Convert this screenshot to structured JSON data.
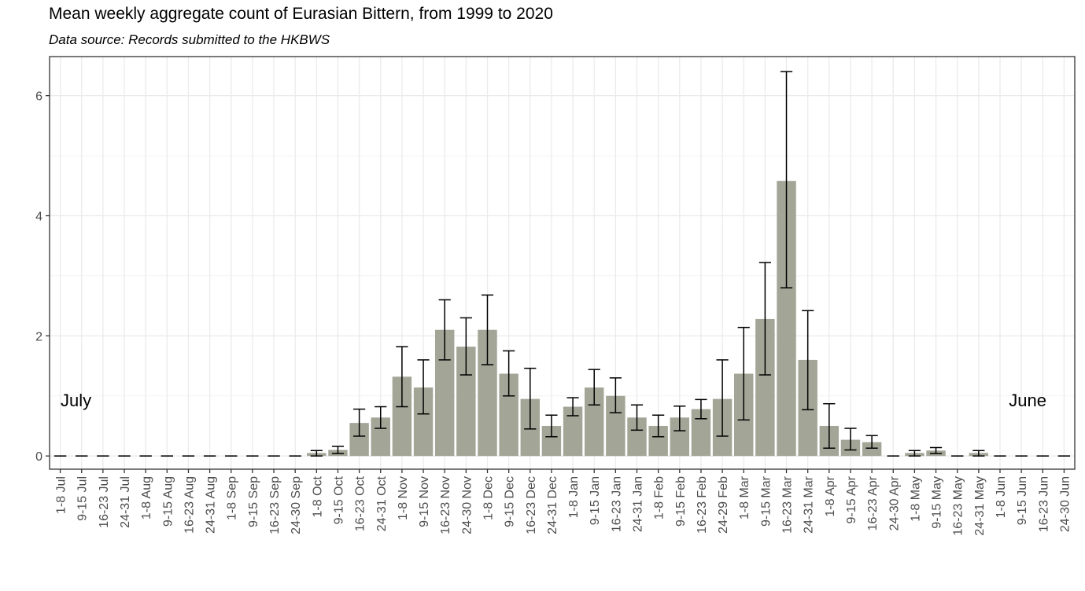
{
  "chart_data": {
    "type": "bar",
    "title": "Mean weekly aggregate count of Eurasian Bittern, from 1999 to 2020",
    "subtitle": "Data source: Records submitted to the HKBWS",
    "xlabel": "",
    "ylabel": "",
    "ylim": [
      -0.22,
      6.65
    ],
    "yticks": [
      0,
      2,
      4,
      6
    ],
    "grid": true,
    "bar_color": "#a3a597",
    "categories": [
      "1-8 Jul",
      "9-15 Jul",
      "16-23 Jul",
      "24-31 Jul",
      "1-8 Aug",
      "9-15 Aug",
      "16-23 Aug",
      "24-31 Aug",
      "1-8 Sep",
      "9-15 Sep",
      "16-23 Sep",
      "24-30 Sep",
      "1-8 Oct",
      "9-15 Oct",
      "16-23 Oct",
      "24-31 Oct",
      "1-8 Nov",
      "9-15 Nov",
      "16-23 Nov",
      "24-30 Nov",
      "1-8 Dec",
      "9-15 Dec",
      "16-23 Dec",
      "24-31 Dec",
      "1-8 Jan",
      "9-15 Jan",
      "16-23 Jan",
      "24-31 Jan",
      "1-8 Feb",
      "9-15 Feb",
      "16-23 Feb",
      "24-29 Feb",
      "1-8 Mar",
      "9-15 Mar",
      "16-23 Mar",
      "24-31 Mar",
      "1-8 Apr",
      "9-15 Apr",
      "16-23 Apr",
      "24-30 Apr",
      "1-8 May",
      "9-15 May",
      "16-23 May",
      "24-31 May",
      "1-8 Jun",
      "9-15 Jun",
      "16-23 Jun",
      "24-30 Jun"
    ],
    "values": [
      0,
      0,
      0,
      0,
      0,
      0,
      0,
      0,
      0,
      0,
      0,
      0,
      0.05,
      0.1,
      0.55,
      0.64,
      1.32,
      1.14,
      2.1,
      1.82,
      2.1,
      1.37,
      0.95,
      0.5,
      0.82,
      1.14,
      1.0,
      0.64,
      0.5,
      0.64,
      0.78,
      0.95,
      1.37,
      2.28,
      4.58,
      1.6,
      0.5,
      0.27,
      0.23,
      0,
      0.05,
      0.09,
      0,
      0.05,
      0,
      0,
      0,
      0
    ],
    "error_low": [
      0,
      0,
      0,
      0,
      0,
      0,
      0,
      0,
      0,
      0,
      0,
      0,
      0,
      0.04,
      0.33,
      0.46,
      0.82,
      0.7,
      1.6,
      1.35,
      1.52,
      1.0,
      0.45,
      0.32,
      0.67,
      0.85,
      0.72,
      0.43,
      0.32,
      0.42,
      0.62,
      0.33,
      0.6,
      1.35,
      2.8,
      0.77,
      0.13,
      0.1,
      0.13,
      0,
      0,
      0.04,
      0,
      0,
      0,
      0,
      0,
      0
    ],
    "error_high": [
      0,
      0,
      0,
      0,
      0,
      0,
      0,
      0,
      0,
      0,
      0,
      0,
      0.09,
      0.16,
      0.78,
      0.82,
      1.82,
      1.6,
      2.6,
      2.3,
      2.68,
      1.75,
      1.46,
      0.68,
      0.97,
      1.44,
      1.3,
      0.85,
      0.68,
      0.83,
      0.94,
      1.6,
      2.14,
      3.22,
      6.4,
      2.42,
      0.87,
      0.46,
      0.34,
      0,
      0.09,
      0.14,
      0,
      0.09,
      0,
      0,
      0,
      0
    ],
    "annotations": [
      {
        "text": "July",
        "anchor": "left"
      },
      {
        "text": "June",
        "anchor": "right"
      }
    ]
  }
}
